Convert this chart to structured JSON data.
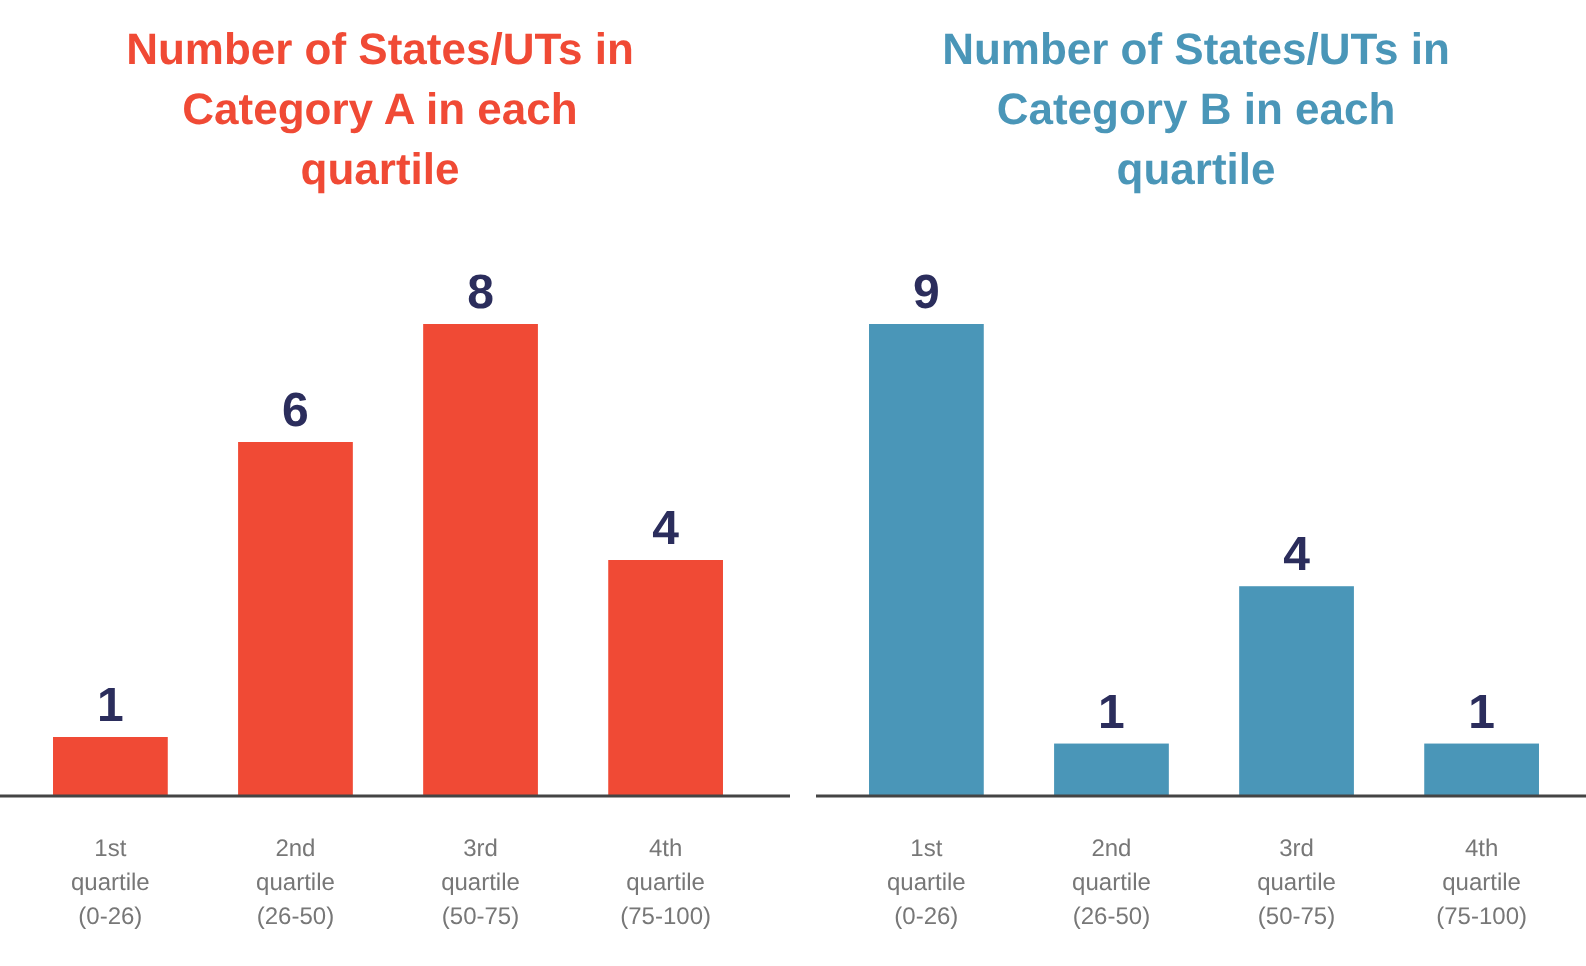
{
  "chart_data": [
    {
      "type": "bar",
      "title": "Number of States/UTs in Category A in each quartile",
      "categories": [
        "1st quartile (0-26)",
        "2nd quartile (26-50)",
        "3rd quartile (50-75)",
        "4th quartile (75-100)"
      ],
      "values": [
        1,
        6,
        8,
        4
      ],
      "color": "#f04a35",
      "data_labels": true
    },
    {
      "type": "bar",
      "title": "Number of States/UTs in Category B in each quartile",
      "categories": [
        "1st quartile (0-26)",
        "2nd quartile (26-50)",
        "3rd quartile (50-75)",
        "4th quartile (75-100)"
      ],
      "values": [
        9,
        1,
        4,
        1
      ],
      "color": "#4a96b8",
      "data_labels": true
    }
  ]
}
